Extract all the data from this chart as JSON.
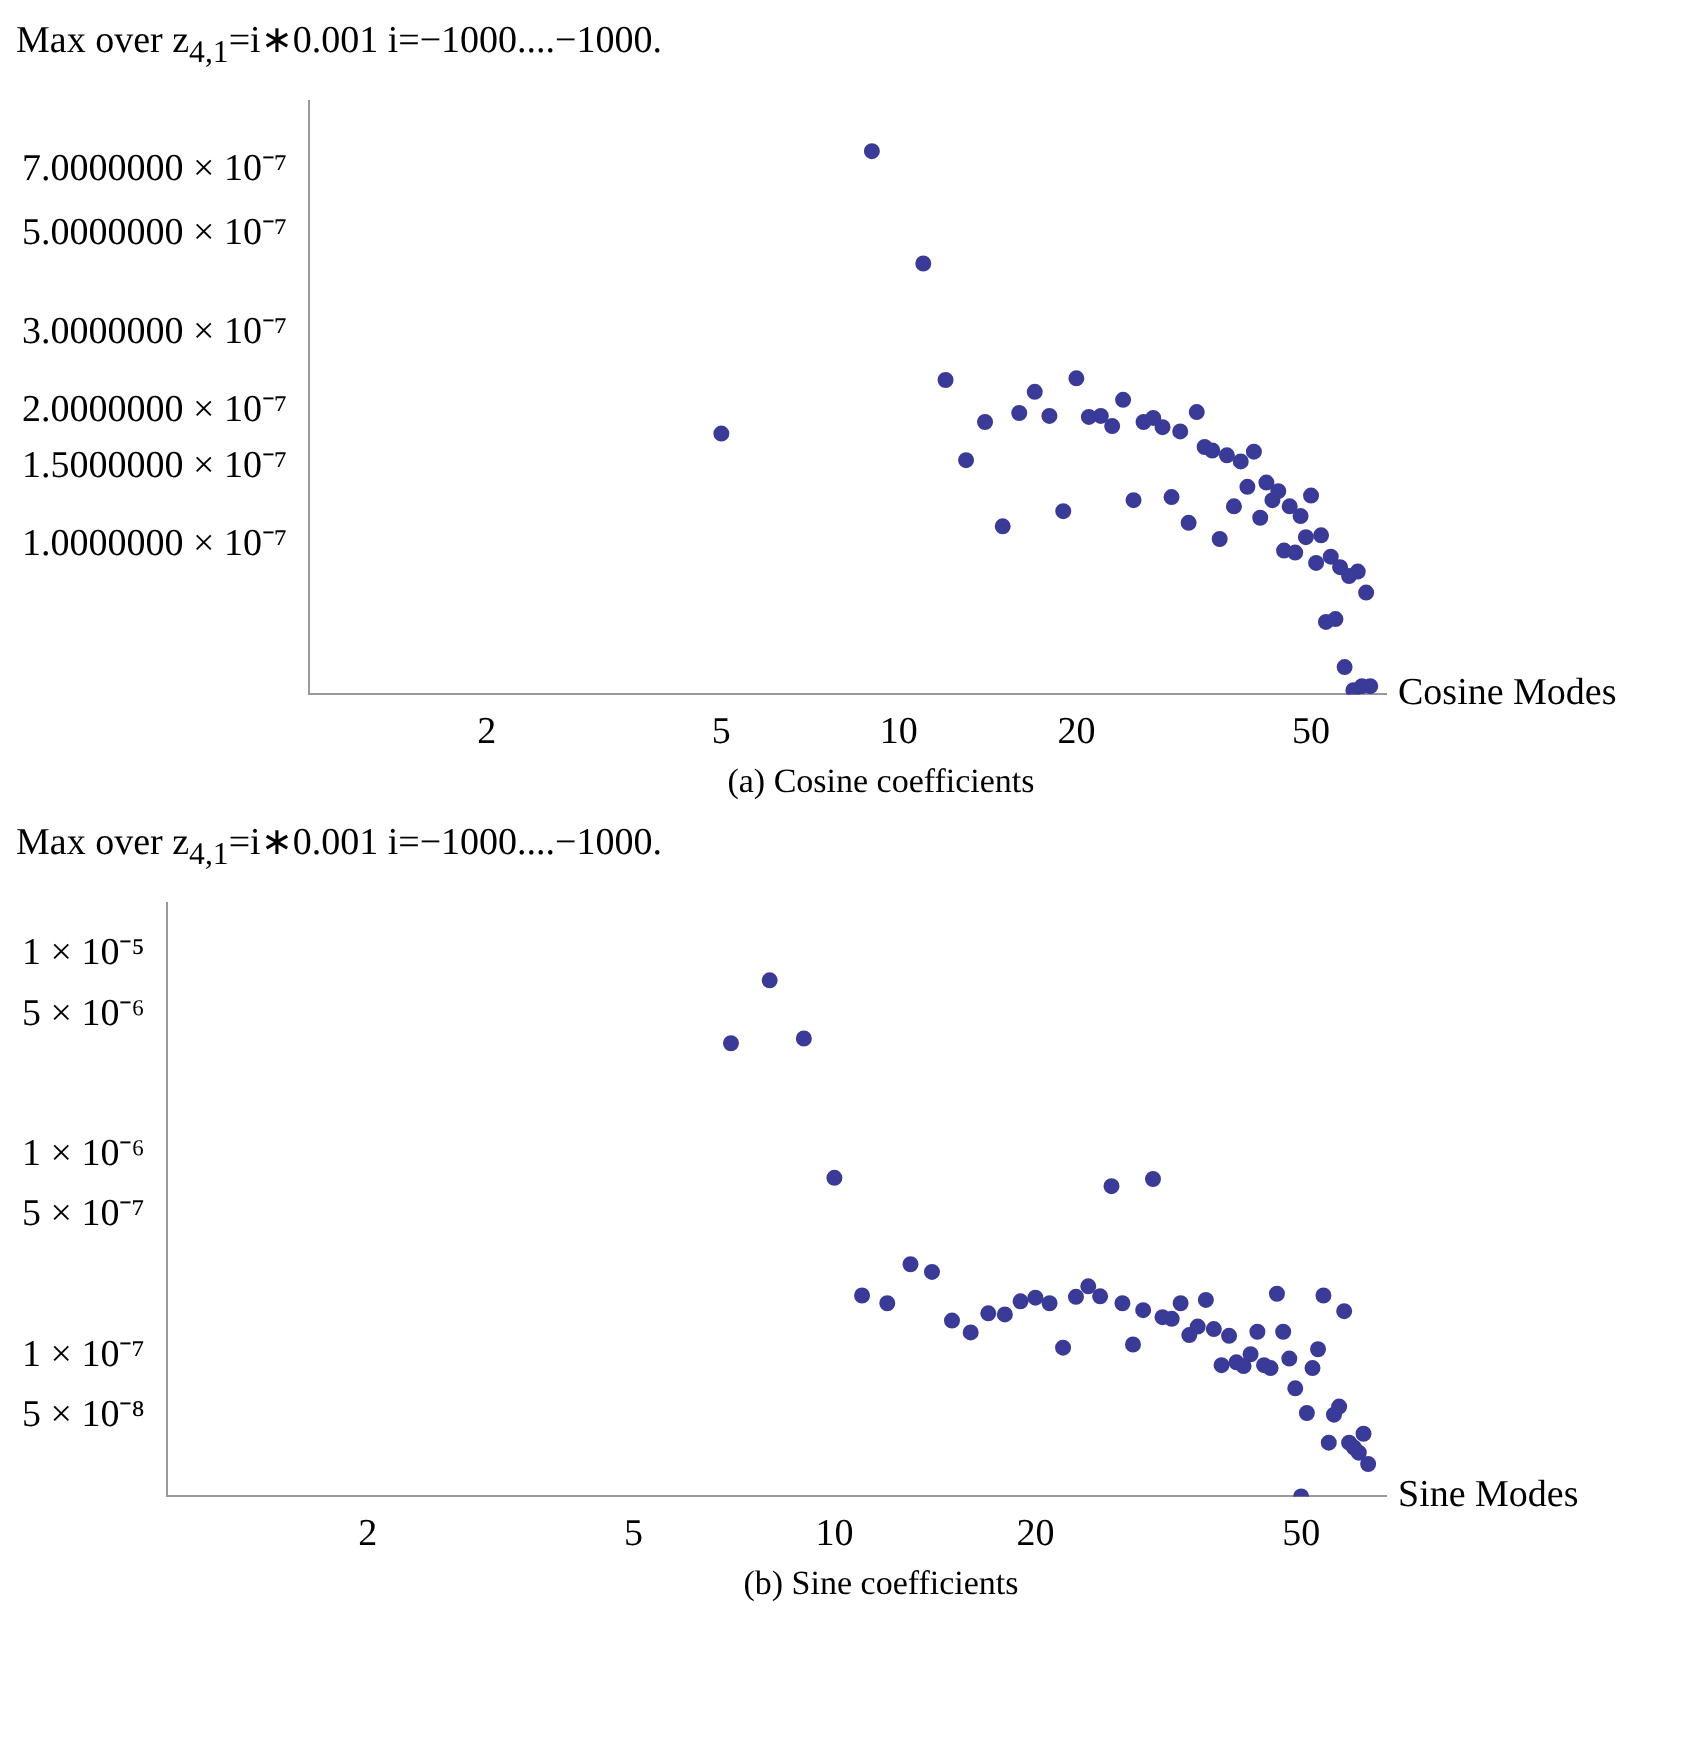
{
  "chart_data": [
    {
      "type": "scatter",
      "title": "Max over z$_{4,1}$=i∗0.001 i=−1000....−1000.",
      "xlabel": "Cosine Modes",
      "annotations": [
        "(a) Cosine coefficients"
      ],
      "log": "xy",
      "marker": "circle",
      "x": [
        5,
        9,
        11,
        12,
        13,
        14,
        15,
        16,
        17,
        18,
        19,
        20,
        21,
        22,
        23,
        24,
        25,
        26,
        27,
        28,
        29,
        30,
        31,
        32,
        33,
        34,
        35,
        36,
        37,
        38,
        39,
        40,
        41,
        42,
        43,
        44,
        45,
        46,
        47,
        48,
        49,
        50,
        51,
        52,
        53,
        54,
        55,
        56,
        57,
        58,
        59,
        60,
        61,
        62,
        63
      ],
      "series": [
        {
          "color": "#3a3a98",
          "values": [
            1.78e-07,
            7.7e-07,
            4.3e-07,
            2.35e-07,
            1.55e-07,
            1.89e-07,
            1.1e-07,
            1.98e-07,
            2.21e-07,
            1.95e-07,
            1.19e-07,
            2.37e-07,
            1.94e-07,
            1.95e-07,
            1.85e-07,
            2.12e-07,
            1.26e-07,
            1.89e-07,
            1.93e-07,
            1.84e-07,
            1.28e-07,
            1.8e-07,
            1.12e-07,
            1.99e-07,
            1.66e-07,
            1.63e-07,
            1.03e-07,
            1.59e-07,
            1.22e-07,
            1.54e-07,
            1.35e-07,
            1.62e-07,
            1.15e-07,
            1.38e-07,
            1.26e-07,
            1.32e-07,
            9.7e-08,
            1.22e-07,
            9.6e-08,
            1.16e-07,
            1.04e-07,
            1.29e-07,
            9.1e-08,
            1.05e-07,
            6.7e-08,
            9.4e-08,
            6.8e-08,
            8.9e-08,
            5.3e-08,
            8.5e-08,
            4.7e-08,
            8.7e-08,
            4.8e-08,
            7.8e-08,
            4.8e-08
          ]
        }
      ],
      "xlim": [
        1,
        67
      ],
      "xticks": [
        2,
        5,
        10,
        20,
        50
      ],
      "ylim": [
        4.6e-08,
        1e-06
      ],
      "yticks": [
        {
          "value": 1e-07,
          "label": "1.0000000 × 10⁻⁷"
        },
        {
          "value": 1.5e-07,
          "label": "1.5000000 × 10⁻⁷"
        },
        {
          "value": 2e-07,
          "label": "2.0000000 × 10⁻⁷"
        },
        {
          "value": 3e-07,
          "label": "3.0000000 × 10⁻⁷"
        },
        {
          "value": 5e-07,
          "label": "5.0000000 × 10⁻⁷"
        },
        {
          "value": 7e-07,
          "label": "7.0000000 × 10⁻⁷"
        }
      ]
    },
    {
      "type": "scatter",
      "title": "Max over z$_{4,1}$=i∗0.001 i=−1000....−1000.",
      "xlabel": "Sine Modes",
      "annotations": [
        "(b) Sine coefficients"
      ],
      "log": "xy",
      "marker": "circle",
      "x": [
        7,
        8,
        9,
        10,
        11,
        12,
        13,
        14,
        15,
        16,
        17,
        18,
        19,
        20,
        21,
        22,
        23,
        24,
        25,
        26,
        27,
        28,
        29,
        30,
        31,
        32,
        33,
        34,
        35,
        36,
        37,
        38,
        39,
        40,
        41,
        42,
        43,
        44,
        45,
        46,
        47,
        48,
        49,
        50,
        51,
        52,
        53,
        54,
        55,
        56,
        57,
        58,
        59,
        60,
        61,
        62,
        63
      ],
      "series": [
        {
          "color": "#3a3a98",
          "values": [
            3.6e-06,
            7.4e-06,
            3.8e-06,
            7.7e-07,
            2e-07,
            1.83e-07,
            2.86e-07,
            2.62e-07,
            1.5e-07,
            1.31e-07,
            1.63e-07,
            1.61e-07,
            1.87e-07,
            1.95e-07,
            1.83e-07,
            1.1e-07,
            1.97e-07,
            2.22e-07,
            1.98e-07,
            7e-07,
            1.83e-07,
            1.14e-07,
            1.69e-07,
            7.6e-07,
            1.56e-07,
            1.53e-07,
            1.83e-07,
            1.27e-07,
            1.4e-07,
            1.9e-07,
            1.36e-07,
            9e-08,
            1.26e-07,
            9.3e-08,
            8.9e-08,
            1.02e-07,
            1.32e-07,
            9e-08,
            8.7e-08,
            2.04e-07,
            1.32e-07,
            9.7e-08,
            6.9e-08,
            2e-08,
            5.2e-08,
            8.7e-08,
            1.08e-07,
            2e-07,
            3.7e-08,
            5.1e-08,
            5.6e-08,
            1.67e-07,
            3.7e-08,
            3.5e-08,
            3.3e-08,
            4.1e-08,
            2.9e-08
          ]
        }
      ],
      "xlim": [
        1,
        67
      ],
      "xticks": [
        2,
        5,
        10,
        20,
        50
      ],
      "ylim": [
        2e-08,
        1.8e-05
      ],
      "yticks": [
        {
          "value": 5e-08,
          "label": "5 × 10⁻⁸"
        },
        {
          "value": 1e-07,
          "label": "1 × 10⁻⁷"
        },
        {
          "value": 5e-07,
          "label": "5 × 10⁻⁷"
        },
        {
          "value": 1e-06,
          "label": "1 × 10⁻⁶"
        },
        {
          "value": 5e-06,
          "label": "5 × 10⁻⁶"
        },
        {
          "value": 1e-05,
          "label": "1 × 10⁻⁵"
        }
      ]
    }
  ]
}
